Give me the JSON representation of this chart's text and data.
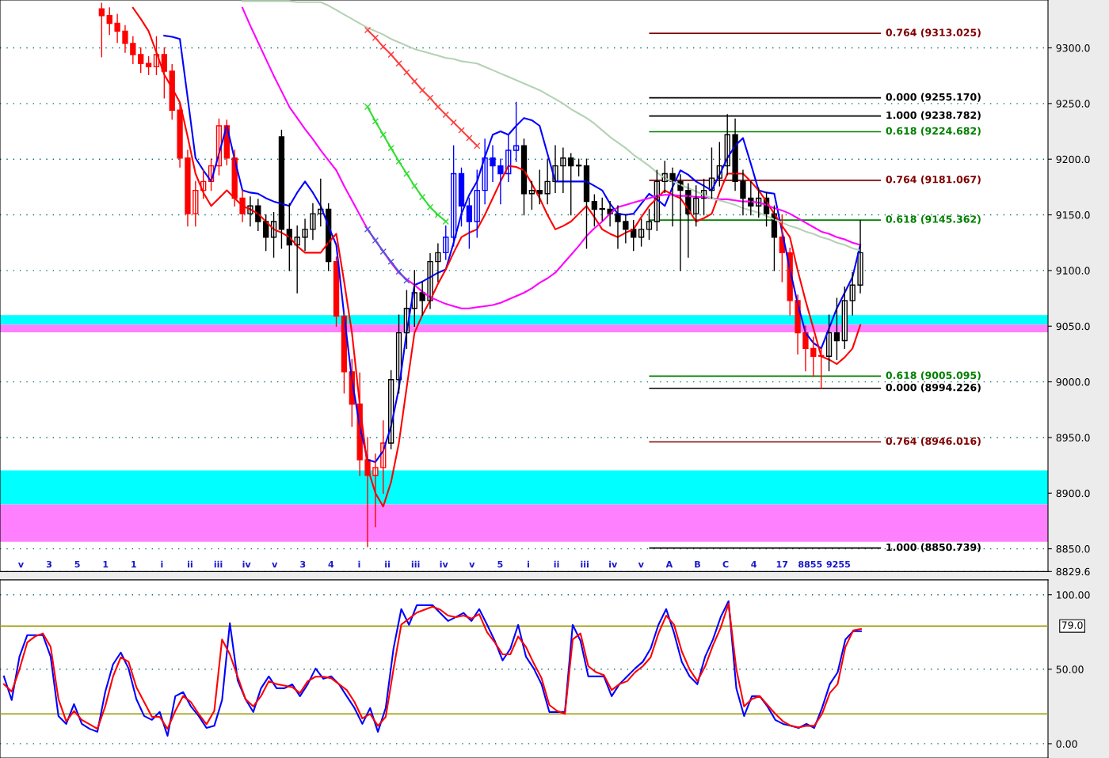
{
  "chart_data": [
    {
      "type": "candlestick",
      "ylim": [
        8829.6,
        9343
      ],
      "grid": "y",
      "yticks": [
        {
          "value": 8829.6,
          "label": "8829.6"
        },
        {
          "value": 8850,
          "label": "8850.0"
        },
        {
          "value": 8900,
          "label": "8900.0"
        },
        {
          "value": 8950,
          "label": "8950.0"
        },
        {
          "value": 9000,
          "label": "9000.0"
        },
        {
          "value": 9050,
          "label": "9050.0"
        },
        {
          "value": 9100,
          "label": "9100.0"
        },
        {
          "value": 9150,
          "label": "9150.0"
        },
        {
          "value": 9200,
          "label": "9200.0"
        },
        {
          "value": 9250,
          "label": "9250.0"
        },
        {
          "value": 9300,
          "label": "9300.0"
        }
      ],
      "categories": [
        null,
        null,
        null,
        null,
        null,
        null,
        null,
        null,
        null,
        null,
        null,
        null,
        null,
        null,
        null,
        null,
        null,
        null,
        null,
        null,
        null,
        null,
        null,
        null,
        null,
        null,
        null,
        null,
        null,
        null,
        null,
        null,
        null,
        null,
        null,
        null,
        null,
        null,
        null,
        null,
        null,
        null,
        null,
        null,
        null,
        null,
        null,
        null,
        null,
        null,
        null,
        null,
        null,
        null,
        null,
        null,
        null,
        null,
        null,
        null,
        null,
        null,
        null,
        null,
        null,
        null,
        null,
        null,
        null,
        null,
        null,
        null,
        null,
        null,
        null,
        null,
        null,
        null,
        null,
        null,
        null,
        null,
        null,
        null,
        null,
        null,
        null,
        null,
        null,
        null,
        null,
        null,
        null,
        null,
        null,
        null,
        null,
        null
      ],
      "ohlc": [
        [
          9335,
          9340,
          9292,
          9329
        ],
        [
          9329,
          9336,
          9312,
          9322
        ],
        [
          9322,
          9330,
          9305,
          9315
        ],
        [
          9315,
          9320,
          9296,
          9304
        ],
        [
          9304,
          9310,
          9286,
          9294
        ],
        [
          9294,
          9300,
          9278,
          9286
        ],
        [
          9286,
          9292,
          9276,
          9283
        ],
        [
          9283,
          9310,
          9276,
          9294
        ],
        [
          9294,
          9300,
          9255,
          9279
        ],
        [
          9279,
          9285,
          9236,
          9244
        ],
        [
          9244,
          9250,
          9193,
          9201
        ],
        [
          9201,
          9208,
          9140,
          9151
        ],
        [
          9151,
          9180,
          9140,
          9172
        ],
        [
          9172,
          9190,
          9165,
          9180
        ],
        [
          9180,
          9200,
          9172,
          9194
        ],
        [
          9194,
          9236,
          9186,
          9230
        ],
        [
          9230,
          9235,
          9195,
          9201
        ],
        [
          9201,
          9208,
          9158,
          9165
        ],
        [
          9165,
          9172,
          9144,
          9151
        ],
        [
          9151,
          9166,
          9140,
          9158
        ],
        [
          9158,
          9164,
          9136,
          9144
        ],
        [
          9144,
          9150,
          9118,
          9130
        ],
        [
          9130,
          9152,
          9112,
          9144
        ],
        [
          9220,
          9226,
          9120,
          9137
        ],
        [
          9137,
          9160,
          9100,
          9123
        ],
        [
          9123,
          9140,
          9080,
          9130
        ],
        [
          9130,
          9146,
          9118,
          9137
        ],
        [
          9137,
          9160,
          9128,
          9151
        ],
        [
          9151,
          9182,
          9140,
          9155
        ],
        [
          9155,
          9160,
          9100,
          9108
        ],
        [
          9108,
          9112,
          9050,
          9059
        ],
        [
          9059,
          9062,
          8990,
          9009
        ],
        [
          9009,
          9020,
          8960,
          8980
        ],
        [
          8980,
          9008,
          8916,
          8930
        ],
        [
          8930,
          8950,
          8852,
          8916
        ],
        [
          8916,
          8935,
          8870,
          8923
        ],
        [
          8923,
          8965,
          8900,
          8945
        ],
        [
          8945,
          9010,
          8940,
          9002
        ],
        [
          9002,
          9060,
          8990,
          9044
        ],
        [
          9044,
          9082,
          9030,
          9066
        ],
        [
          9066,
          9100,
          9050,
          9080
        ],
        [
          9080,
          9090,
          9060,
          9073
        ],
        [
          9073,
          9115,
          9066,
          9108
        ],
        [
          9108,
          9124,
          9090,
          9116
        ],
        [
          9116,
          9140,
          9110,
          9130
        ],
        [
          9130,
          9212,
          9122,
          9187
        ],
        [
          9187,
          9192,
          9140,
          9158
        ],
        [
          9158,
          9165,
          9120,
          9144
        ],
        [
          9144,
          9190,
          9130,
          9172
        ],
        [
          9172,
          9218,
          9160,
          9201
        ],
        [
          9201,
          9212,
          9180,
          9194
        ],
        [
          9194,
          9200,
          9160,
          9187
        ],
        [
          9187,
          9222,
          9180,
          9208
        ],
        [
          9208,
          9251,
          9198,
          9212
        ],
        [
          9212,
          9218,
          9150,
          9169
        ],
        [
          9169,
          9180,
          9155,
          9172
        ],
        [
          9172,
          9190,
          9160,
          9169
        ],
        [
          9169,
          9200,
          9160,
          9180
        ],
        [
          9180,
          9212,
          9170,
          9194
        ],
        [
          9194,
          9210,
          9170,
          9201
        ],
        [
          9201,
          9205,
          9150,
          9194
        ],
        [
          9194,
          9200,
          9185,
          9194
        ],
        [
          9194,
          9200,
          9120,
          9162
        ],
        [
          9162,
          9168,
          9140,
          9155
        ],
        [
          9155,
          9165,
          9145,
          9155
        ],
        [
          9155,
          9162,
          9140,
          9151
        ],
        [
          9151,
          9158,
          9120,
          9144
        ],
        [
          9144,
          9150,
          9125,
          9137
        ],
        [
          9137,
          9145,
          9118,
          9130
        ],
        [
          9130,
          9146,
          9122,
          9137
        ],
        [
          9137,
          9155,
          9128,
          9144
        ],
        [
          9144,
          9190,
          9136,
          9180
        ],
        [
          9180,
          9198,
          9170,
          9187
        ],
        [
          9187,
          9192,
          9140,
          9180
        ],
        [
          9180,
          9186,
          9100,
          9172
        ],
        [
          9172,
          9178,
          9112,
          9151
        ],
        [
          9151,
          9176,
          9140,
          9165
        ],
        [
          9165,
          9182,
          9150,
          9172
        ],
        [
          9172,
          9210,
          9165,
          9183
        ],
        [
          9183,
          9215,
          9176,
          9194
        ],
        [
          9194,
          9240,
          9186,
          9222
        ],
        [
          9222,
          9236,
          9172,
          9180
        ],
        [
          9180,
          9190,
          9150,
          9165
        ],
        [
          9165,
          9180,
          9150,
          9158
        ],
        [
          9158,
          9174,
          9148,
          9165
        ],
        [
          9165,
          9170,
          9140,
          9151
        ],
        [
          9151,
          9158,
          9100,
          9130
        ],
        [
          9130,
          9150,
          9090,
          9116
        ],
        [
          9116,
          9120,
          9060,
          9073
        ],
        [
          9073,
          9078,
          9025,
          9044
        ],
        [
          9044,
          9050,
          9010,
          9030
        ],
        [
          9030,
          9040,
          9005,
          9023
        ],
        [
          9023,
          9030,
          8994,
          9023
        ],
        [
          9023,
          9060,
          9010,
          9044
        ],
        [
          9044,
          9075,
          9020,
          9037
        ],
        [
          9037,
          9085,
          9030,
          9073
        ],
        [
          9073,
          9098,
          9060,
          9087
        ],
        [
          9087,
          9145,
          9080,
          9116
        ]
      ],
      "colors": [
        "#ff0000",
        "#ff0000",
        "#ff0000",
        "#ff0000",
        "#ff0000",
        "#ff0000",
        "#ff0000",
        "#ff0000",
        "#ff0000",
        "#ff0000",
        "#ff0000",
        "#ff0000",
        "#ff0000",
        "#ff0000",
        "#ff0000",
        "#ff0000",
        "#ff0000",
        "#ff0000",
        "#ff0000",
        "#000000",
        "#000000",
        "#000000",
        "#000000",
        "#000000",
        "#000000",
        "#000000",
        "#000000",
        "#000000",
        "#000000",
        "#000000",
        "#ff0000",
        "#ff0000",
        "#ff0000",
        "#ff0000",
        "#ff0000",
        "#ff0000",
        "#ff0000",
        "#000000",
        "#000000",
        "#000000",
        "#000000",
        "#000000",
        "#000000",
        "#000000",
        "#0000ff",
        "#0000ff",
        "#0000ff",
        "#0000ff",
        "#0000ff",
        "#0000ff",
        "#0000ff",
        "#0000ff",
        "#0000ff",
        "#0000ff",
        "#000000",
        "#000000",
        "#000000",
        "#000000",
        "#000000",
        "#000000",
        "#000000",
        "#000000",
        "#000000",
        "#000000",
        "#000000",
        "#000000",
        "#000000",
        "#000000",
        "#000000",
        "#000000",
        "#000000",
        "#000000",
        "#000000",
        "#000000",
        "#000000",
        "#000000",
        "#000000",
        "#000000",
        "#000000",
        "#000000",
        "#000000",
        "#000000",
        "#000000",
        "#000000",
        "#000000",
        "#000000",
        "#000000",
        "#ff0000",
        "#ff0000",
        "#ff0000",
        "#ff0000",
        "#ff0000",
        "#ff0000",
        "#000000",
        "#000000",
        "#000000",
        "#000000",
        "#000000"
      ],
      "series": [
        {
          "type": "line",
          "color": "#0000ff",
          "values": [
            null,
            null,
            null,
            null,
            null,
            null,
            null,
            null,
            9311,
            9310,
            9308,
            9255,
            9201,
            9190,
            9180,
            9205,
            9230,
            9200,
            9172,
            9170,
            9169,
            9165,
            9162,
            9160,
            9158,
            9170,
            9180,
            9170,
            9158,
            9140,
            9123,
            9060,
            9002,
            8960,
            8930,
            8928,
            8938,
            8960,
            8994,
            9045,
            9087,
            9090,
            9094,
            9098,
            9101,
            9125,
            9151,
            9168,
            9180,
            9202,
            9222,
            9225,
            9222,
            9230,
            9237,
            9235,
            9230,
            9205,
            9180,
            9180,
            9180,
            9180,
            9180,
            9176,
            9172,
            9160,
            9151,
            9150,
            9151,
            9160,
            9169,
            9164,
            9158,
            9175,
            9190,
            9186,
            9180,
            9176,
            9172,
            9186,
            9201,
            9212,
            9219,
            9196,
            9172,
            9170,
            9169,
            9135,
            9101,
            9070,
            9044,
            9035,
            9030,
            9048,
            9066,
            9080,
            9094,
            9123
          ]
        },
        {
          "type": "line",
          "color": "#ff0000",
          "values": [
            null,
            null,
            null,
            null,
            9336,
            9326,
            9315,
            9296,
            9276,
            9264,
            9251,
            9220,
            9187,
            9170,
            9158,
            9165,
            9172,
            9165,
            9158,
            9155,
            9151,
            9144,
            9137,
            9134,
            9130,
            9122,
            9116,
            9116,
            9116,
            9125,
            9133,
            9090,
            9044,
            8980,
            8923,
            8900,
            8888,
            8910,
            8945,
            8995,
            9044,
            9060,
            9073,
            9088,
            9101,
            9116,
            9130,
            9134,
            9137,
            9150,
            9165,
            9180,
            9194,
            9193,
            9190,
            9178,
            9165,
            9150,
            9137,
            9140,
            9144,
            9151,
            9158,
            9148,
            9137,
            9133,
            9130,
            9134,
            9137,
            9148,
            9158,
            9165,
            9172,
            9168,
            9165,
            9155,
            9144,
            9147,
            9151,
            9170,
            9187,
            9187,
            9187,
            9180,
            9172,
            9162,
            9151,
            9140,
            9130,
            9100,
            9073,
            9048,
            9023,
            9020,
            9016,
            9022,
            9030,
            9051
          ]
        },
        {
          "type": "line",
          "color": "#ff00ff",
          "values": [
            null,
            null,
            null,
            null,
            null,
            null,
            null,
            null,
            null,
            null,
            null,
            null,
            null,
            null,
            null,
            null,
            null,
            null,
            9336,
            9320,
            9305,
            9290,
            9275,
            9261,
            9247,
            9237,
            9227,
            9218,
            9208,
            9199,
            9190,
            9176,
            9163,
            9150,
            9137,
            9127,
            9117,
            9107,
            9098,
            9092,
            9087,
            9081,
            9076,
            9073,
            9070,
            9068,
            9066,
            9066,
            9067,
            9068,
            9069,
            9071,
            9074,
            9077,
            9080,
            9084,
            9089,
            9093,
            9098,
            9106,
            9114,
            9122,
            9131,
            9138,
            9144,
            9151,
            9157,
            9159,
            9161,
            9163,
            9165,
            9167,
            9168,
            9168,
            9167,
            9167,
            9166,
            9166,
            9165,
            9164,
            9164,
            9163,
            9162,
            9162,
            9161,
            9159,
            9156,
            9154,
            9151,
            9147,
            9143,
            9139,
            9135,
            9133,
            9130,
            9128,
            9125,
            9123
          ]
        },
        {
          "type": "line",
          "color": "#b4d2b4",
          "values": [
            null,
            null,
            null,
            null,
            null,
            null,
            null,
            null,
            null,
            null,
            null,
            null,
            null,
            null,
            null,
            null,
            null,
            null,
            9342,
            9342,
            9342,
            9342,
            9342,
            9342,
            9342,
            9341,
            9341,
            9341,
            9341,
            9338,
            9334,
            9330,
            9326,
            9322,
            9318,
            9315,
            9312,
            9308,
            9305,
            9302,
            9299,
            9297,
            9295,
            9293,
            9291,
            9290,
            9288,
            9287,
            9286,
            9283,
            9280,
            9277,
            9274,
            9271,
            9268,
            9265,
            9262,
            9258,
            9254,
            9250,
            9245,
            9241,
            9237,
            9232,
            9226,
            9220,
            9215,
            9210,
            9204,
            9199,
            9194,
            9188,
            9183,
            9180,
            9177,
            9174,
            9171,
            9168,
            9165,
            9163,
            9161,
            9159,
            9156,
            9154,
            9152,
            9149,
            9146,
            9143,
            9140,
            9138,
            9135,
            9133,
            9130,
            9128,
            9125,
            9123,
            9120,
            9118
          ]
        },
        {
          "type": "line",
          "color": "#ff4040",
          "marker": "cross",
          "values": [
            null,
            null,
            null,
            null,
            null,
            null,
            null,
            null,
            null,
            null,
            null,
            null,
            null,
            null,
            null,
            null,
            null,
            null,
            null,
            null,
            null,
            null,
            null,
            null,
            null,
            null,
            null,
            null,
            null,
            null,
            null,
            null,
            null,
            null,
            9316,
            9309,
            9301,
            9294,
            9286,
            9278,
            9270,
            9262,
            9255,
            9247,
            9240,
            9233,
            9226,
            9219,
            9212,
            null,
            null,
            null,
            null,
            null,
            null,
            null,
            null,
            null,
            null,
            null,
            null,
            null,
            null,
            null,
            null,
            null,
            null,
            null,
            null,
            null,
            null,
            null,
            null,
            null,
            null,
            null,
            null,
            null,
            null,
            null,
            null,
            null,
            null,
            null,
            null,
            null,
            null,
            null,
            null,
            null,
            null,
            null,
            null,
            null,
            null,
            null,
            null,
            null
          ]
        },
        {
          "type": "line",
          "color": "#33dd33",
          "marker": "cross",
          "values": [
            null,
            null,
            null,
            null,
            null,
            null,
            null,
            null,
            null,
            null,
            null,
            null,
            null,
            null,
            null,
            null,
            null,
            null,
            null,
            null,
            null,
            null,
            null,
            null,
            null,
            null,
            null,
            null,
            null,
            null,
            null,
            null,
            null,
            null,
            9247,
            9234,
            9222,
            9210,
            9198,
            9187,
            9176,
            9166,
            9157,
            9150,
            9144,
            null,
            null,
            null,
            null,
            null,
            null,
            null,
            null,
            null,
            null,
            null,
            null,
            null,
            null,
            null,
            null,
            null,
            null,
            null,
            null,
            null,
            null,
            null,
            null,
            null,
            null,
            null,
            null,
            null,
            null,
            null,
            null,
            null,
            null,
            null,
            null,
            null,
            null,
            null,
            null,
            null,
            null,
            null,
            null,
            null,
            null,
            null,
            null,
            null,
            null,
            null,
            null,
            null
          ]
        },
        {
          "type": "line",
          "color": "#5555dd",
          "marker": "cross",
          "values": [
            null,
            null,
            null,
            null,
            null,
            null,
            null,
            null,
            null,
            null,
            null,
            null,
            null,
            null,
            null,
            null,
            null,
            null,
            null,
            null,
            null,
            null,
            null,
            null,
            null,
            null,
            null,
            null,
            null,
            null,
            null,
            null,
            null,
            null,
            9137,
            9127,
            9117,
            9108,
            9099,
            9091,
            null,
            null,
            null,
            null,
            null,
            null,
            null,
            null,
            null,
            null,
            null,
            null,
            null,
            null,
            null,
            null,
            null,
            null,
            null,
            null,
            null,
            null,
            null,
            null,
            null,
            null,
            null,
            null,
            null,
            null,
            null,
            null,
            null,
            null,
            null,
            null,
            null,
            null,
            null,
            null,
            null,
            null,
            null,
            null,
            null,
            null,
            null,
            null,
            null,
            null,
            null,
            null,
            null,
            null,
            null,
            null,
            null,
            null
          ]
        }
      ],
      "bands": [
        {
          "axis": "y",
          "from": 8889.9,
          "to": 8920.5,
          "color": "#00ffff"
        },
        {
          "axis": "y",
          "from": 8856.4,
          "to": 8889.9,
          "color": "#ff80ff"
        },
        {
          "axis": "y",
          "from": 9051.5,
          "to": 9060,
          "color": "#00ffff"
        },
        {
          "axis": "y",
          "from": 9044.4,
          "to": 9051.5,
          "color": "#ff80ff"
        }
      ],
      "ref_lines": [
        {
          "axis": "y",
          "value": 9313.025,
          "label": "0.764 (9313.025)",
          "color": "#800000"
        },
        {
          "axis": "y",
          "value": 9255.17,
          "label": "0.000 (9255.170)",
          "color": "#000000"
        },
        {
          "axis": "y",
          "value": 9238.782,
          "label": "1.000 (9238.782)",
          "color": "#000000"
        },
        {
          "axis": "y",
          "value": 9224.682,
          "label": "0.618 (9224.682)",
          "color": "#008000"
        },
        {
          "axis": "y",
          "value": 9181.067,
          "label": "0.764 (9181.067)",
          "color": "#800000"
        },
        {
          "axis": "y",
          "value": 9145.362,
          "label": "0.618 (9145.362)",
          "color": "#008000"
        },
        {
          "axis": "y",
          "value": 9005.095,
          "label": "0.618 (9005.095)",
          "color": "#008000"
        },
        {
          "axis": "y",
          "value": 8994.226,
          "label": "0.000 (8994.226)",
          "color": "#000000"
        },
        {
          "axis": "y",
          "value": 8946.016,
          "label": "0.764 (8946.016)",
          "color": "#800000"
        },
        {
          "axis": "y",
          "value": 8850.739,
          "label": "1.000 (8850.739)",
          "color": "#000000"
        }
      ],
      "annotations": [
        "v",
        "3",
        "5",
        "1",
        "1",
        "i",
        "ii",
        "iii",
        "iv",
        "v",
        "3",
        "4",
        "i",
        "ii",
        "iii",
        "iv",
        "v",
        "5",
        "i",
        "ii",
        "iii",
        "iv",
        "v",
        "A",
        "B",
        "C",
        "4",
        "17",
        "8855",
        "9255"
      ]
    },
    {
      "type": "line",
      "ylim": [
        -9.6,
        110
      ],
      "grid": "y",
      "yticks": [
        {
          "value": 0,
          "label": "0.00"
        },
        {
          "value": 50,
          "label": "50.00"
        },
        {
          "value": 100,
          "label": "100.00"
        }
      ],
      "categories": [
        null,
        null,
        null,
        null,
        null,
        null,
        null,
        null,
        null,
        null,
        null,
        null,
        null,
        null,
        null,
        null,
        null,
        null,
        null,
        null,
        null,
        null,
        null,
        null,
        null,
        null,
        null,
        null,
        null,
        null,
        null,
        null,
        null,
        null,
        null,
        null,
        null,
        null,
        null,
        null,
        null,
        null,
        null,
        null,
        null,
        null,
        null,
        null,
        null,
        null,
        null,
        null,
        null,
        null,
        null,
        null,
        null,
        null,
        null,
        null,
        null,
        null,
        null,
        null,
        null,
        null,
        null,
        null,
        null,
        null,
        null,
        null,
        null,
        null,
        null,
        null,
        null,
        null,
        null,
        null,
        null,
        null,
        null,
        null,
        null,
        null,
        null,
        null,
        null,
        null,
        null,
        null,
        null,
        null,
        null,
        null,
        null,
        null,
        null,
        null,
        null,
        null,
        null,
        null,
        null,
        null,
        null,
        null,
        null,
        null,
        null
      ],
      "ref_lines": [
        {
          "axis": "y",
          "value": 79,
          "label": "79.0",
          "color": "#999900"
        },
        {
          "axis": "y",
          "value": 20,
          "color": "#999900"
        }
      ],
      "series": [
        {
          "color": "#0000ff",
          "values": [
            45.2,
            29.3,
            58.5,
            72.9,
            72.9,
            72.9,
            58.5,
            18.6,
            13.3,
            26.6,
            13.3,
            10,
            8.0,
            34.6,
            53.2,
            61.2,
            50.5,
            30,
            18.6,
            16.0,
            21.3,
            5.3,
            31.9,
            34.6,
            25,
            18.6,
            10.6,
            12,
            29.3,
            80.9,
            42.6,
            30,
            21.3,
            37.2,
            45.2,
            37.2,
            37.2,
            39.9,
            31.9,
            40,
            50.5,
            43.6,
            45.2,
            40,
            31.9,
            23.9,
            13.3,
            23.9,
            8.0,
            23.9,
            63.8,
            90.4,
            79.8,
            93.1,
            93,
            93.1,
            87.8,
            82.4,
            85,
            87.8,
            82.4,
            90.4,
            80,
            69.1,
            55.9,
            63.8,
            79.8,
            58.5,
            50.5,
            39.9,
            21.3,
            21.3,
            21.3,
            79.8,
            69.1,
            45.2,
            45.2,
            45.2,
            31.9,
            40,
            45.2,
            50.5,
            55,
            63.8,
            79.8,
            90.4,
            74.5,
            55,
            45.2,
            39.9,
            58.5,
            70,
            85.1,
            95.7,
            37.2,
            18.6,
            31.9,
            31.9,
            25,
            16.0,
            13.3,
            12,
            10.6,
            13.3,
            10.6,
            23.9,
            40,
            47.9,
            70,
            75.5,
            75.5
          ]
        },
        {
          "color": "#ff0000",
          "values": [
            40,
            35,
            50,
            68,
            72,
            74,
            65,
            30,
            15,
            22,
            16,
            13,
            10,
            25,
            45,
            58,
            55,
            38,
            28,
            18,
            18,
            10,
            22,
            32,
            28,
            20,
            13,
            22,
            70,
            60,
            45,
            30,
            25,
            32,
            42,
            40,
            39,
            38,
            34,
            42,
            45,
            45,
            44,
            40,
            36,
            28,
            17,
            20,
            12,
            18,
            50,
            80,
            84,
            88,
            90,
            92,
            90,
            86,
            85,
            86,
            84,
            87,
            75,
            68,
            60,
            60,
            72,
            65,
            54,
            44,
            26,
            22,
            20,
            70,
            74,
            52,
            48,
            46,
            36,
            40,
            42,
            48,
            52,
            58,
            74,
            86,
            80,
            62,
            50,
            42,
            52,
            66,
            78,
            94,
            50,
            25,
            30,
            32,
            26,
            20,
            15,
            12,
            11,
            12,
            12,
            20,
            34,
            40,
            65,
            76,
            77
          ]
        }
      ]
    }
  ]
}
